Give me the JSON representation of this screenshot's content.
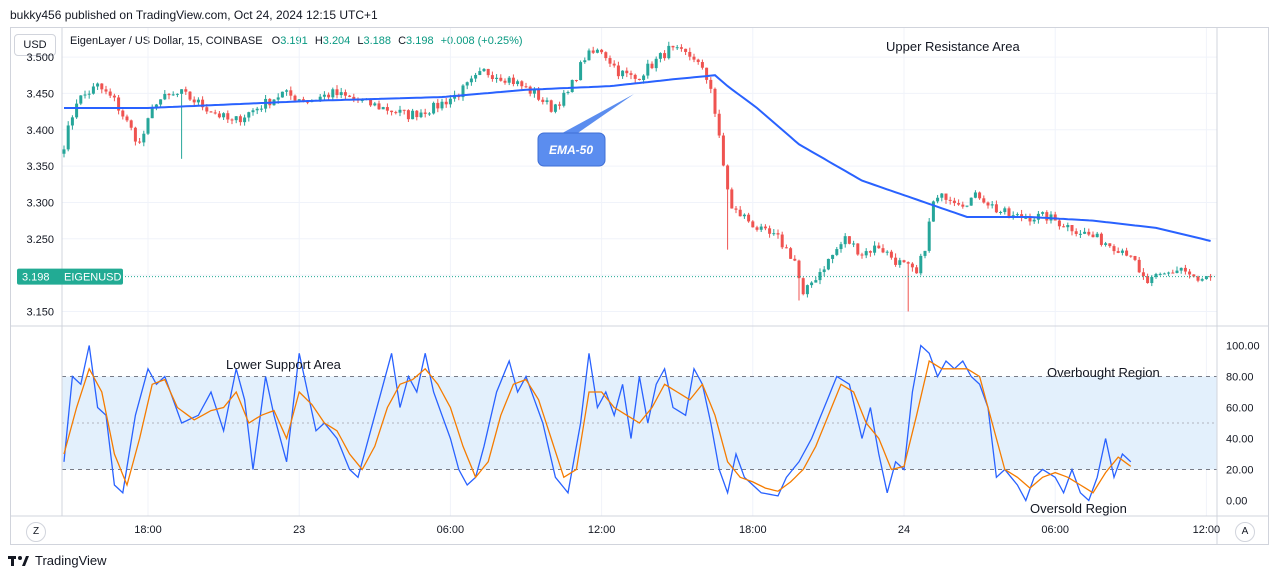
{
  "header": {
    "publish_line": "bukky456 published on TradingView.com, Oct 24, 2024 12:15 UTC+1"
  },
  "toolbar": {
    "currency_button": "USD"
  },
  "legend": {
    "symbol": "EigenLayer / US Dollar, 15, COINBASE",
    "o_label": "O",
    "o_value": "3.191",
    "h_label": "H",
    "h_value": "3.204",
    "l_label": "L",
    "l_value": "3.188",
    "c_label": "C",
    "c_value": "3.198",
    "change": "+0.008 (+0.25%)"
  },
  "price_tag": {
    "price": "3.198",
    "symbol": "EIGENUSD"
  },
  "annotations": {
    "upper_resistance": "Upper Resistance Area",
    "ema_label": "EMA-50",
    "lower_support": "Lower Support Area",
    "overbought": "Overbought Region",
    "oversold": "Oversold Region"
  },
  "footer": {
    "brand": "TradingView",
    "left_button": "Z",
    "right_button": "A"
  },
  "colors": {
    "up": "#26a69a",
    "down": "#ef5350",
    "ema": "#2962ff",
    "k_line": "#2962ff",
    "d_line": "#f57c00",
    "band": "#e3f0fc",
    "tag": "#22ab94",
    "callout": "#5b8def"
  },
  "chart_data": [
    {
      "type": "candlestick",
      "y_ticks": [
        "3.500",
        "3.450",
        "3.400",
        "3.350",
        "3.300",
        "3.250",
        "3.200",
        "3.150"
      ],
      "ylim": [
        3.13,
        3.54
      ],
      "x_ticks": [
        {
          "label": "18:00",
          "bar": 20
        },
        {
          "label": "23",
          "bar": 56
        },
        {
          "label": "06:00",
          "bar": 92
        },
        {
          "label": "12:00",
          "bar": 128
        },
        {
          "label": "18:00",
          "bar": 164
        },
        {
          "label": "24",
          "bar": 200
        },
        {
          "label": "06:00",
          "bar": 236
        },
        {
          "label": "12:00",
          "bar": 272
        }
      ],
      "bar_count": 274,
      "last_price": 3.198,
      "anchors": [
        [
          0,
          3.38
        ],
        [
          3,
          3.44
        ],
        [
          8,
          3.46
        ],
        [
          12,
          3.44
        ],
        [
          18,
          3.38
        ],
        [
          22,
          3.44
        ],
        [
          28,
          3.45
        ],
        [
          34,
          3.43
        ],
        [
          40,
          3.41
        ],
        [
          46,
          3.43
        ],
        [
          52,
          3.45
        ],
        [
          58,
          3.44
        ],
        [
          64,
          3.45
        ],
        [
          70,
          3.44
        ],
        [
          76,
          3.43
        ],
        [
          82,
          3.42
        ],
        [
          88,
          3.43
        ],
        [
          94,
          3.45
        ],
        [
          100,
          3.48
        ],
        [
          106,
          3.47
        ],
        [
          112,
          3.45
        ],
        [
          116,
          3.43
        ],
        [
          120,
          3.45
        ],
        [
          124,
          3.5
        ],
        [
          128,
          3.51
        ],
        [
          132,
          3.48
        ],
        [
          136,
          3.47
        ],
        [
          140,
          3.49
        ],
        [
          144,
          3.51
        ],
        [
          150,
          3.5
        ],
        [
          154,
          3.46
        ],
        [
          157,
          3.35
        ],
        [
          159,
          3.29
        ],
        [
          162,
          3.28
        ],
        [
          166,
          3.26
        ],
        [
          170,
          3.25
        ],
        [
          174,
          3.22
        ],
        [
          176,
          3.17
        ],
        [
          178,
          3.19
        ],
        [
          182,
          3.22
        ],
        [
          186,
          3.25
        ],
        [
          190,
          3.23
        ],
        [
          194,
          3.24
        ],
        [
          198,
          3.22
        ],
        [
          201,
          3.21
        ],
        [
          203,
          3.2
        ],
        [
          205,
          3.24
        ],
        [
          207,
          3.3
        ],
        [
          210,
          3.31
        ],
        [
          214,
          3.3
        ],
        [
          218,
          3.31
        ],
        [
          222,
          3.29
        ],
        [
          226,
          3.28
        ],
        [
          230,
          3.28
        ],
        [
          234,
          3.28
        ],
        [
          238,
          3.27
        ],
        [
          242,
          3.26
        ],
        [
          246,
          3.25
        ],
        [
          250,
          3.24
        ],
        [
          254,
          3.23
        ],
        [
          256,
          3.2
        ],
        [
          258,
          3.19
        ],
        [
          262,
          3.2
        ],
        [
          266,
          3.21
        ],
        [
          270,
          3.19
        ],
        [
          273,
          3.198
        ]
      ],
      "ema_series": {
        "name": "EMA-50",
        "anchors": [
          [
            0,
            3.43
          ],
          [
            20,
            3.43
          ],
          [
            60,
            3.44
          ],
          [
            90,
            3.445
          ],
          [
            110,
            3.455
          ],
          [
            130,
            3.46
          ],
          [
            146,
            3.47
          ],
          [
            155,
            3.475
          ],
          [
            158,
            3.46
          ],
          [
            165,
            3.43
          ],
          [
            175,
            3.38
          ],
          [
            190,
            3.33
          ],
          [
            205,
            3.3
          ],
          [
            215,
            3.28
          ],
          [
            230,
            3.28
          ],
          [
            245,
            3.275
          ],
          [
            260,
            3.265
          ],
          [
            273,
            3.247
          ]
        ]
      }
    },
    {
      "type": "line",
      "y_ticks": [
        "100.00",
        "80.00",
        "60.00",
        "40.00",
        "20.00",
        "0.00"
      ],
      "ylim": [
        -10,
        110
      ],
      "band": [
        20,
        80
      ],
      "midline": 50,
      "series": [
        {
          "key": "k",
          "anchors": [
            [
              0,
              25
            ],
            [
              2,
              80
            ],
            [
              4,
              75
            ],
            [
              6,
              100
            ],
            [
              8,
              60
            ],
            [
              10,
              55
            ],
            [
              12,
              10
            ],
            [
              14,
              5
            ],
            [
              17,
              55
            ],
            [
              20,
              85
            ],
            [
              22,
              75
            ],
            [
              24,
              80
            ],
            [
              28,
              50
            ],
            [
              32,
              55
            ],
            [
              35,
              70
            ],
            [
              38,
              45
            ],
            [
              41,
              85
            ],
            [
              43,
              65
            ],
            [
              45,
              20
            ],
            [
              48,
              80
            ],
            [
              50,
              55
            ],
            [
              53,
              25
            ],
            [
              56,
              95
            ],
            [
              58,
              70
            ],
            [
              60,
              45
            ],
            [
              62,
              50
            ],
            [
              65,
              40
            ],
            [
              68,
              20
            ],
            [
              70,
              15
            ],
            [
              73,
              45
            ],
            [
              76,
              75
            ],
            [
              78,
              95
            ],
            [
              80,
              60
            ],
            [
              82,
              80
            ],
            [
              84,
              70
            ],
            [
              86,
              95
            ],
            [
              88,
              70
            ],
            [
              90,
              55
            ],
            [
              92,
              40
            ],
            [
              94,
              20
            ],
            [
              96,
              10
            ],
            [
              98,
              15
            ],
            [
              100,
              35
            ],
            [
              103,
              70
            ],
            [
              106,
              90
            ],
            [
              108,
              70
            ],
            [
              110,
              80
            ],
            [
              114,
              50
            ],
            [
              117,
              15
            ],
            [
              120,
              5
            ],
            [
              123,
              50
            ],
            [
              125,
              95
            ],
            [
              127,
              60
            ],
            [
              129,
              70
            ],
            [
              131,
              55
            ],
            [
              133,
              75
            ],
            [
              135,
              40
            ],
            [
              137,
              80
            ],
            [
              139,
              50
            ],
            [
              141,
              75
            ],
            [
              143,
              85
            ],
            [
              145,
              60
            ],
            [
              148,
              55
            ],
            [
              150,
              85
            ],
            [
              152,
              75
            ],
            [
              154,
              50
            ],
            [
              156,
              20
            ],
            [
              158,
              5
            ],
            [
              160,
              30
            ],
            [
              162,
              15
            ],
            [
              164,
              10
            ],
            [
              166,
              5
            ],
            [
              170,
              3
            ],
            [
              172,
              15
            ],
            [
              175,
              25
            ],
            [
              178,
              40
            ],
            [
              181,
              60
            ],
            [
              184,
              80
            ],
            [
              187,
              75
            ],
            [
              190,
              40
            ],
            [
              192,
              60
            ],
            [
              194,
              30
            ],
            [
              196,
              5
            ],
            [
              198,
              25
            ],
            [
              200,
              20
            ],
            [
              202,
              70
            ],
            [
              204,
              100
            ],
            [
              206,
              95
            ],
            [
              208,
              80
            ],
            [
              210,
              90
            ],
            [
              212,
              85
            ],
            [
              214,
              90
            ],
            [
              216,
              80
            ],
            [
              218,
              75
            ],
            [
              220,
              60
            ],
            [
              222,
              15
            ],
            [
              224,
              20
            ],
            [
              227,
              10
            ],
            [
              229,
              0
            ],
            [
              231,
              15
            ],
            [
              233,
              20
            ],
            [
              236,
              15
            ],
            [
              238,
              5
            ],
            [
              240,
              20
            ],
            [
              242,
              5
            ],
            [
              244,
              0
            ],
            [
              246,
              15
            ],
            [
              248,
              40
            ],
            [
              250,
              15
            ],
            [
              252,
              30
            ],
            [
              254,
              25
            ]
          ]
        },
        {
          "key": "d",
          "anchors": [
            [
              0,
              30
            ],
            [
              3,
              60
            ],
            [
              6,
              85
            ],
            [
              9,
              70
            ],
            [
              12,
              30
            ],
            [
              15,
              10
            ],
            [
              18,
              40
            ],
            [
              21,
              75
            ],
            [
              24,
              78
            ],
            [
              27,
              60
            ],
            [
              31,
              52
            ],
            [
              35,
              58
            ],
            [
              38,
              60
            ],
            [
              41,
              70
            ],
            [
              44,
              50
            ],
            [
              47,
              55
            ],
            [
              50,
              58
            ],
            [
              53,
              40
            ],
            [
              56,
              70
            ],
            [
              59,
              62
            ],
            [
              62,
              50
            ],
            [
              65,
              45
            ],
            [
              68,
              30
            ],
            [
              71,
              20
            ],
            [
              74,
              35
            ],
            [
              77,
              60
            ],
            [
              80,
              75
            ],
            [
              83,
              78
            ],
            [
              86,
              85
            ],
            [
              89,
              75
            ],
            [
              92,
              60
            ],
            [
              95,
              35
            ],
            [
              98,
              15
            ],
            [
              101,
              25
            ],
            [
              104,
              55
            ],
            [
              107,
              75
            ],
            [
              110,
              78
            ],
            [
              113,
              65
            ],
            [
              116,
              40
            ],
            [
              119,
              15
            ],
            [
              122,
              20
            ],
            [
              125,
              70
            ],
            [
              128,
              70
            ],
            [
              131,
              60
            ],
            [
              134,
              55
            ],
            [
              137,
              50
            ],
            [
              140,
              60
            ],
            [
              143,
              75
            ],
            [
              146,
              70
            ],
            [
              149,
              65
            ],
            [
              152,
              75
            ],
            [
              155,
              55
            ],
            [
              158,
              25
            ],
            [
              161,
              15
            ],
            [
              164,
              12
            ],
            [
              167,
              8
            ],
            [
              170,
              6
            ],
            [
              173,
              12
            ],
            [
              176,
              20
            ],
            [
              179,
              35
            ],
            [
              182,
              55
            ],
            [
              185,
              75
            ],
            [
              188,
              70
            ],
            [
              191,
              50
            ],
            [
              194,
              40
            ],
            [
              197,
              20
            ],
            [
              200,
              22
            ],
            [
              203,
              55
            ],
            [
              206,
              90
            ],
            [
              209,
              85
            ],
            [
              212,
              85
            ],
            [
              215,
              85
            ],
            [
              218,
              80
            ],
            [
              221,
              50
            ],
            [
              224,
              20
            ],
            [
              227,
              15
            ],
            [
              230,
              8
            ],
            [
              233,
              15
            ],
            [
              236,
              18
            ],
            [
              239,
              15
            ],
            [
              242,
              10
            ],
            [
              245,
              5
            ],
            [
              248,
              18
            ],
            [
              251,
              28
            ],
            [
              254,
              22
            ]
          ]
        }
      ]
    }
  ]
}
